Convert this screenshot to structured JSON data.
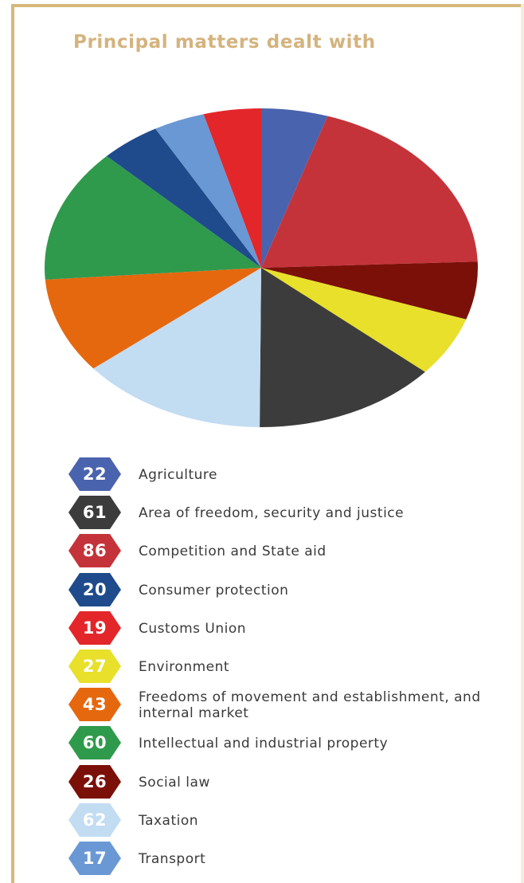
{
  "title": "Principal matters dealt with",
  "chart_data": {
    "type": "pie",
    "title": "Principal matters dealt with",
    "start_angle_deg": 0,
    "slice_order": [
      "Agriculture",
      "Competition and State aid",
      "Social law",
      "Environment",
      "Area of freedom, security and justice",
      "Taxation",
      "Freedoms of movement and establishment, and internal market",
      "Intellectual and industrial property",
      "Consumer protection",
      "Transport",
      "Customs Union"
    ],
    "series": [
      {
        "label": "Agriculture",
        "value": 22,
        "color": "#4a63ae",
        "text_color": "#ffffff"
      },
      {
        "label": "Area of freedom, security and justice",
        "value": 61,
        "color": "#3c3c3c",
        "text_color": "#ffffff"
      },
      {
        "label": "Competition and State aid",
        "value": 86,
        "color": "#c5333a",
        "text_color": "#ffffff"
      },
      {
        "label": "Consumer protection",
        "value": 20,
        "color": "#1f4b8c",
        "text_color": "#ffffff"
      },
      {
        "label": "Customs Union",
        "value": 19,
        "color": "#e3262a",
        "text_color": "#ffffff"
      },
      {
        "label": "Environment",
        "value": 27,
        "color": "#e8e02a",
        "text_color": "#ffffff"
      },
      {
        "label": "Freedoms of movement and establishment, and internal market",
        "value": 43,
        "color": "#e5680f",
        "text_color": "#ffffff"
      },
      {
        "label": "Intellectual and industrial property",
        "value": 60,
        "color": "#2f9a4c",
        "text_color": "#ffffff"
      },
      {
        "label": "Social law",
        "value": 26,
        "color": "#7b1008",
        "text_color": "#ffffff"
      },
      {
        "label": "Taxation",
        "value": 62,
        "color": "#c2dcf2",
        "text_color": "#ffffff"
      },
      {
        "label": "Transport",
        "value": 17,
        "color": "#6a98d4",
        "text_color": "#ffffff"
      }
    ]
  }
}
